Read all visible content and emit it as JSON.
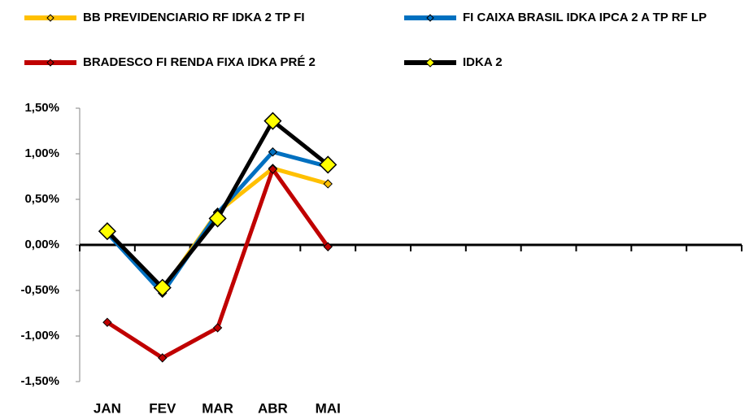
{
  "chart_data": {
    "type": "line",
    "categories": [
      "JAN",
      "FEV",
      "MAR",
      "ABR",
      "MAI",
      null,
      null,
      null,
      null,
      null,
      null,
      null
    ],
    "series": [
      {
        "name": "BB PREVIDENCIARIO RF IDKA 2 TP FI",
        "color": "#ffc000",
        "marker_color": "#ffc000",
        "values": [
          0.13,
          -0.5,
          0.36,
          0.84,
          0.67,
          null,
          null,
          null,
          null,
          null,
          null,
          null
        ]
      },
      {
        "name": "FI CAIXA BRASIL IDKA IPCA 2 A TP RF LP",
        "color": "#0070c0",
        "marker_color": "#0070c0",
        "values": [
          0.13,
          -0.53,
          0.35,
          1.02,
          0.86,
          null,
          null,
          null,
          null,
          null,
          null,
          null
        ]
      },
      {
        "name": "BRADESCO FI RENDA FIXA IDKA PRÉ 2",
        "color": "#c00000",
        "marker_color": "#c00000",
        "values": [
          -0.85,
          -1.24,
          -0.91,
          0.83,
          -0.02,
          null,
          null,
          null,
          null,
          null,
          null,
          null
        ]
      },
      {
        "name": "IDKA 2",
        "color": "#000000",
        "marker_color": "#ffff00",
        "values": [
          0.15,
          -0.47,
          0.29,
          1.36,
          0.88,
          null,
          null,
          null,
          null,
          null,
          null,
          null
        ]
      }
    ],
    "ylim": [
      -1.5,
      1.5
    ],
    "yticks": [
      {
        "value": -1.5,
        "label": "-1,50%"
      },
      {
        "value": -1.0,
        "label": "-1,00%"
      },
      {
        "value": -0.5,
        "label": "-0,50%"
      },
      {
        "value": 0,
        "label": "0,00%"
      },
      {
        "value": 0.5,
        "label": "0,50%"
      },
      {
        "value": 1.0,
        "label": "1,00%"
      },
      {
        "value": 1.5,
        "label": "1,50%"
      }
    ],
    "grid": false,
    "legend": "top"
  }
}
